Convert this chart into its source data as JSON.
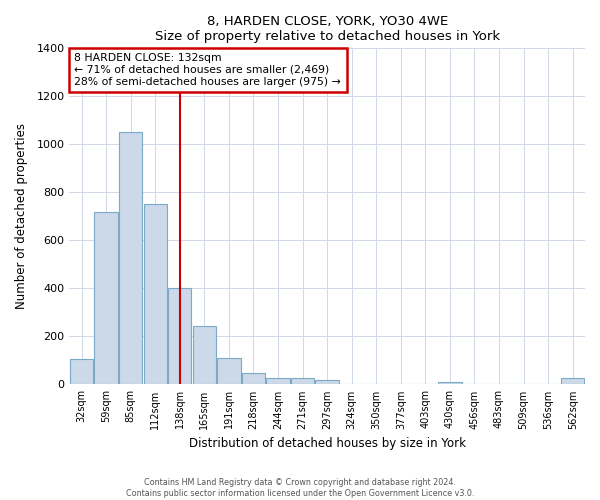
{
  "title": "8, HARDEN CLOSE, YORK, YO30 4WE",
  "subtitle": "Size of property relative to detached houses in York",
  "xlabel": "Distribution of detached houses by size in York",
  "ylabel": "Number of detached properties",
  "bar_labels": [
    "32sqm",
    "59sqm",
    "85sqm",
    "112sqm",
    "138sqm",
    "165sqm",
    "191sqm",
    "218sqm",
    "244sqm",
    "271sqm",
    "297sqm",
    "324sqm",
    "350sqm",
    "377sqm",
    "403sqm",
    "430sqm",
    "456sqm",
    "483sqm",
    "509sqm",
    "536sqm",
    "562sqm"
  ],
  "bar_heights": [
    105,
    720,
    1050,
    750,
    400,
    245,
    110,
    48,
    28,
    25,
    20,
    0,
    0,
    0,
    0,
    10,
    0,
    0,
    0,
    0,
    25
  ],
  "bar_color": "#ccd9e8",
  "bar_edge_color": "#7aaac8",
  "vline_index": 4,
  "vline_color": "#cc0000",
  "annotation_title": "8 HARDEN CLOSE: 132sqm",
  "annotation_line1": "← 71% of detached houses are smaller (2,469)",
  "annotation_line2": "28% of semi-detached houses are larger (975) →",
  "annotation_box_color": "#cc0000",
  "ylim": [
    0,
    1400
  ],
  "yticks": [
    0,
    200,
    400,
    600,
    800,
    1000,
    1200,
    1400
  ],
  "footer1": "Contains HM Land Registry data © Crown copyright and database right 2024.",
  "footer2": "Contains public sector information licensed under the Open Government Licence v3.0."
}
